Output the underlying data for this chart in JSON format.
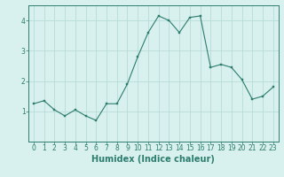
{
  "x": [
    0,
    1,
    2,
    3,
    4,
    5,
    6,
    7,
    8,
    9,
    10,
    11,
    12,
    13,
    14,
    15,
    16,
    17,
    18,
    19,
    20,
    21,
    22,
    23
  ],
  "y": [
    1.25,
    1.35,
    1.05,
    0.85,
    1.05,
    0.85,
    0.7,
    1.25,
    1.25,
    1.9,
    2.8,
    3.6,
    4.15,
    4.0,
    3.6,
    4.1,
    4.15,
    2.45,
    2.55,
    2.45,
    2.05,
    1.4,
    1.5,
    1.8
  ],
  "xlabel": "Humidex (Indice chaleur)",
  "xlim": [
    -0.5,
    23.5
  ],
  "ylim": [
    0,
    4.5
  ],
  "yticks": [
    1,
    2,
    3,
    4
  ],
  "xticks": [
    0,
    1,
    2,
    3,
    4,
    5,
    6,
    7,
    8,
    9,
    10,
    11,
    12,
    13,
    14,
    15,
    16,
    17,
    18,
    19,
    20,
    21,
    22,
    23
  ],
  "line_color": "#2d7d6e",
  "marker_color": "#2d7d6e",
  "bg_color": "#d8f0ee",
  "grid_color": "#b8dcd8",
  "tick_fontsize": 5.5,
  "xlabel_fontsize": 7.0
}
